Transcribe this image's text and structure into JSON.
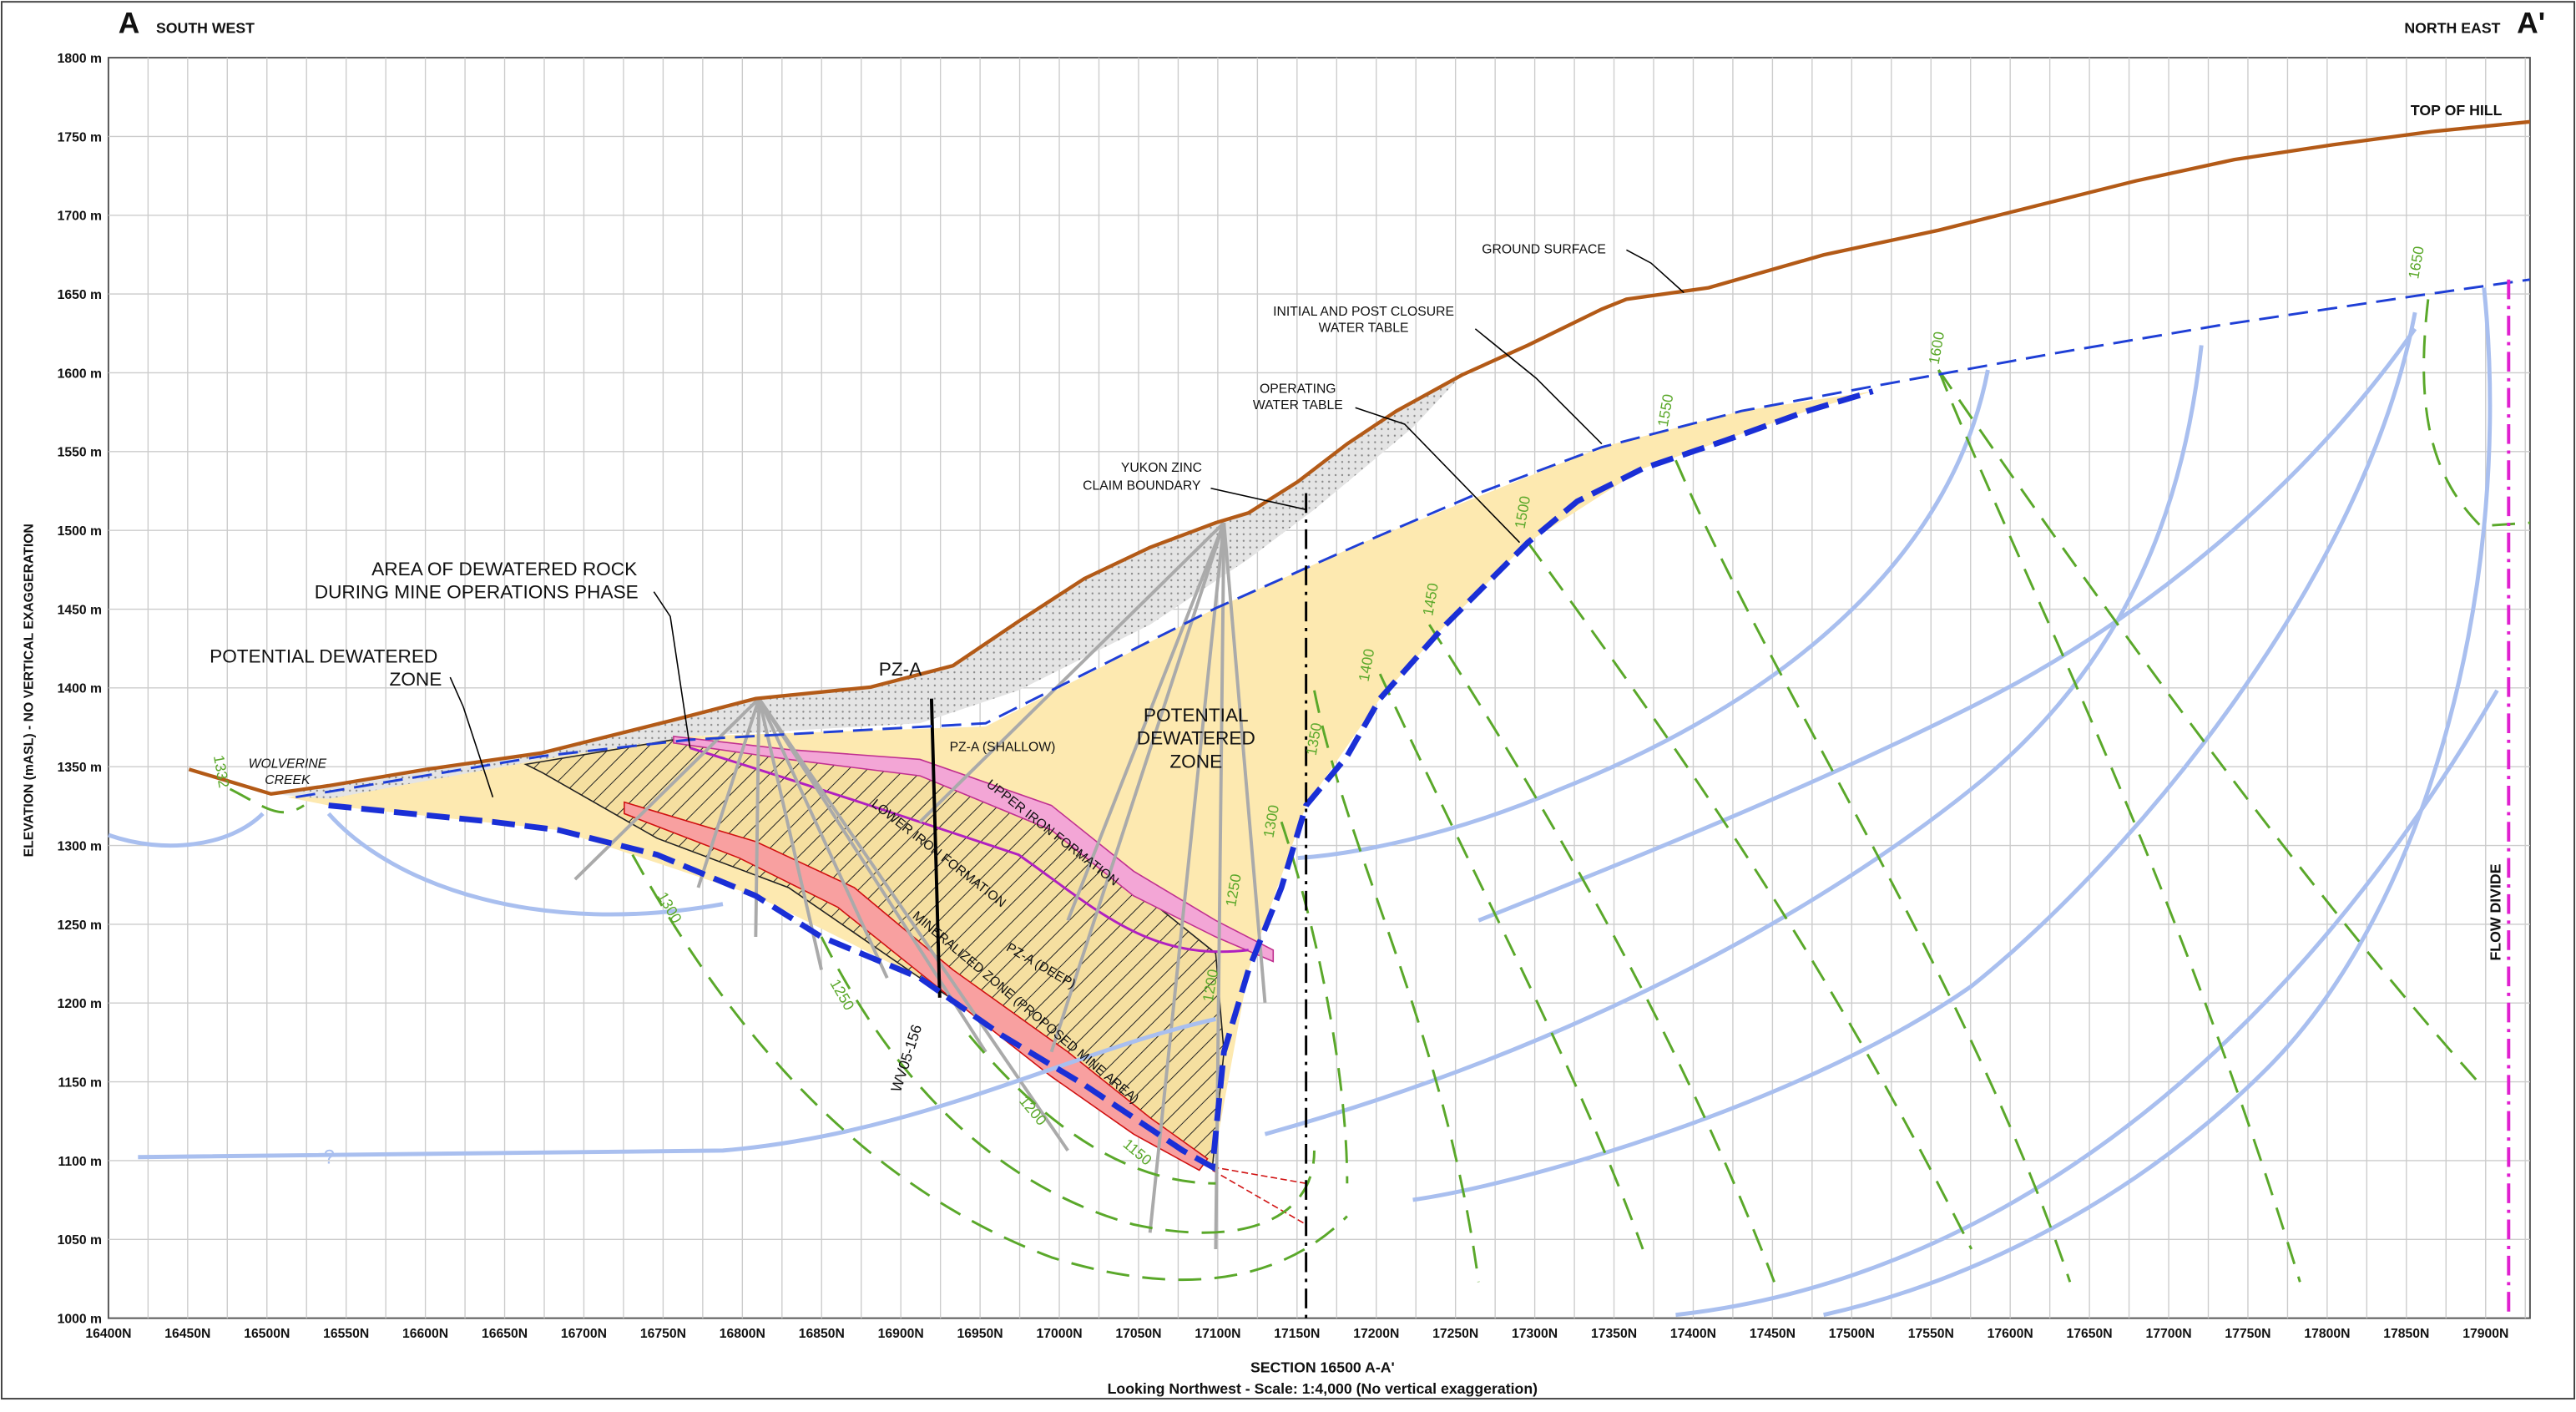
{
  "header": {
    "left_letter": "A",
    "left_direction": "SOUTH WEST",
    "right_direction": "NORTH EAST",
    "right_letter": "A'"
  },
  "axes": {
    "y_title": "ELEVATION (mASL) - NO VERTICAL EXAGGERATION",
    "yticks": [
      "1800 m",
      "1750 m",
      "1700 m",
      "1650 m",
      "1600 m",
      "1550 m",
      "1500 m",
      "1450 m",
      "1400 m",
      "1350 m",
      "1300 m",
      "1250 m",
      "1200 m",
      "1150 m",
      "1100 m",
      "1050 m",
      "1000 m"
    ],
    "xticks": [
      "16400N",
      "16450N",
      "16500N",
      "16550N",
      "16600N",
      "16650N",
      "16700N",
      "16750N",
      "16800N",
      "16850N",
      "16900N",
      "16950N",
      "17000N",
      "17050N",
      "17100N",
      "17150N",
      "17200N",
      "17250N",
      "17300N",
      "17350N",
      "17400N",
      "17450N",
      "17500N",
      "17550N",
      "17600N",
      "17650N",
      "17700N",
      "17750N",
      "17800N",
      "17850N",
      "17900N"
    ]
  },
  "labels": {
    "top_of_hill": "TOP OF HILL",
    "ground_surface": "GROUND SURFACE",
    "initial_wt_1": "INITIAL AND POST CLOSURE",
    "initial_wt_2": "WATER TABLE",
    "operating_wt_1": "OPERATING",
    "operating_wt_2": "WATER TABLE",
    "claim_1": "YUKON ZINC",
    "claim_2": "CLAIM BOUNDARY",
    "area_1": "AREA OF DEWATERED ROCK",
    "area_2": "DURING MINE OPERATIONS PHASE",
    "pot_left_1": "POTENTIAL DEWATERED",
    "pot_left_2": "ZONE",
    "pot_center_1": "POTENTIAL",
    "pot_center_2": "DEWATERED",
    "pot_center_3": "ZONE",
    "pza": "PZ-A",
    "pza_shallow": "PZ-A (SHALLOW)",
    "pza_deep": "PZ-A (DEEP)",
    "creek_1": "WOLVERINE",
    "creek_2": "CREEK",
    "flow_divide": "FLOW DIVIDE",
    "upper_iron": "UPPER IRON FORMATION",
    "lower_iron": "LOWER IRON FORMATION",
    "mineralized": "MINERALIZED ZONE (PROPOSED MINE AREA)",
    "drillhole": "WV05-156",
    "question": "?"
  },
  "contours": [
    "1332",
    "1300",
    "1250",
    "1200",
    "1150",
    "1200",
    "1250",
    "1300",
    "1350",
    "1400",
    "1450",
    "1500",
    "1550",
    "1600",
    "1650"
  ],
  "footer": {
    "line1": "SECTION 16500    A-A'",
    "line2": "Looking Northwest -  Scale: 1:4,000  (No vertical exaggeration)"
  }
}
